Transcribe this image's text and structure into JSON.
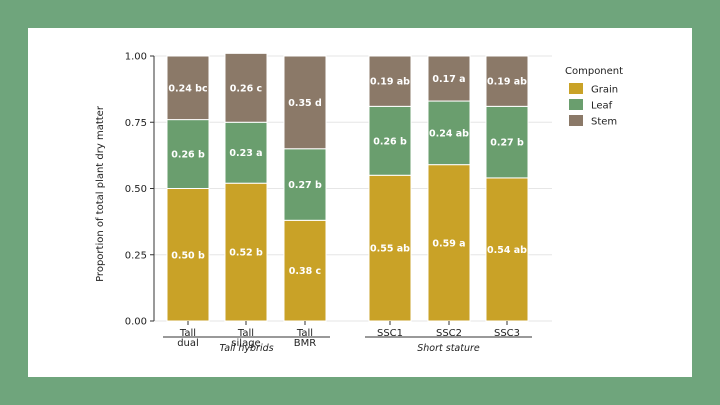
{
  "colors": {
    "page_background": "#6fa57c",
    "panel_background": "#ffffff",
    "grain": "#c9a227",
    "leaf": "#6a9e6e",
    "stem": "#8b7968"
  },
  "chart_data": {
    "type": "bar",
    "stacked": true,
    "ylabel": "Proportion of total plant dry matter",
    "ylim": [
      0,
      1
    ],
    "yticks": [
      "0.00",
      "0.25",
      "0.50",
      "0.75",
      "1.00"
    ],
    "grid": true,
    "legend_position": "right",
    "legend_title": "Component",
    "categories": [
      {
        "lines": [
          "Tall",
          "dual"
        ],
        "group": 0
      },
      {
        "lines": [
          "Tall",
          "silage"
        ],
        "group": 0
      },
      {
        "lines": [
          "Tall",
          "BMR"
        ],
        "group": 0
      },
      {
        "lines": [
          "SSC1"
        ],
        "group": 1
      },
      {
        "lines": [
          "SSC2"
        ],
        "group": 1
      },
      {
        "lines": [
          "SSC3"
        ],
        "group": 1
      }
    ],
    "groups": [
      "Tall hybrids",
      "Short stature"
    ],
    "series": [
      {
        "name": "Grain",
        "color": "#c9a227",
        "values": [
          0.5,
          0.52,
          0.38,
          0.55,
          0.59,
          0.54
        ],
        "labels": [
          "0.50 b",
          "0.52 b",
          "0.38 c",
          "0.55 ab",
          "0.59 a",
          "0.54 ab"
        ]
      },
      {
        "name": "Leaf",
        "color": "#6a9e6e",
        "values": [
          0.26,
          0.23,
          0.27,
          0.26,
          0.24,
          0.27
        ],
        "labels": [
          "0.26 b",
          "0.23 a",
          "0.27 b",
          "0.26 b",
          "0.24 ab",
          "0.27 b"
        ]
      },
      {
        "name": "Stem",
        "color": "#8b7968",
        "values": [
          0.24,
          0.26,
          0.35,
          0.19,
          0.17,
          0.19
        ],
        "labels": [
          "0.24 bc",
          "0.26 c",
          "0.35 d",
          "0.19 ab",
          "0.17 a",
          "0.19 ab"
        ]
      }
    ]
  }
}
